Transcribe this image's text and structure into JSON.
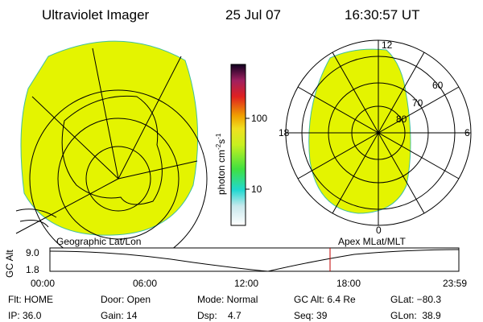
{
  "header": {
    "title": "Ultraviolet Imager",
    "date": "25 Jul 07",
    "time": "16:30:57 UT"
  },
  "colorbar": {
    "label": {
      "unit": "photon cm",
      "exp1": "-2",
      "unit2": "s",
      "exp2": "-1"
    },
    "ticks": [
      "100",
      "10"
    ]
  },
  "polar": {
    "mlt_labels": {
      "top": "12",
      "left": "18",
      "right": "6",
      "bottom": "0"
    },
    "lat_labels": [
      "60",
      "70",
      "80"
    ]
  },
  "timeline": {
    "left_label": "Geographic Lat/Lon",
    "right_label": "Apex MLat/MLT",
    "axis_label": "GC Alt",
    "y_labels": [
      "9.0",
      "1.8"
    ],
    "times": [
      "00:00",
      "06:00",
      "12:00",
      "18:00",
      "23:59"
    ]
  },
  "info": {
    "rows": [
      [
        "Flt: HOME",
        "Door: Open",
        "Mode: Normal",
        "GC Alt: 6.4 Re",
        "GLat: −80.3"
      ],
      [
        "IP: 36.0",
        "Gain: 14",
        "Dsp:    4.7",
        "Seq: 39",
        "GLon:  38.9"
      ]
    ]
  }
}
